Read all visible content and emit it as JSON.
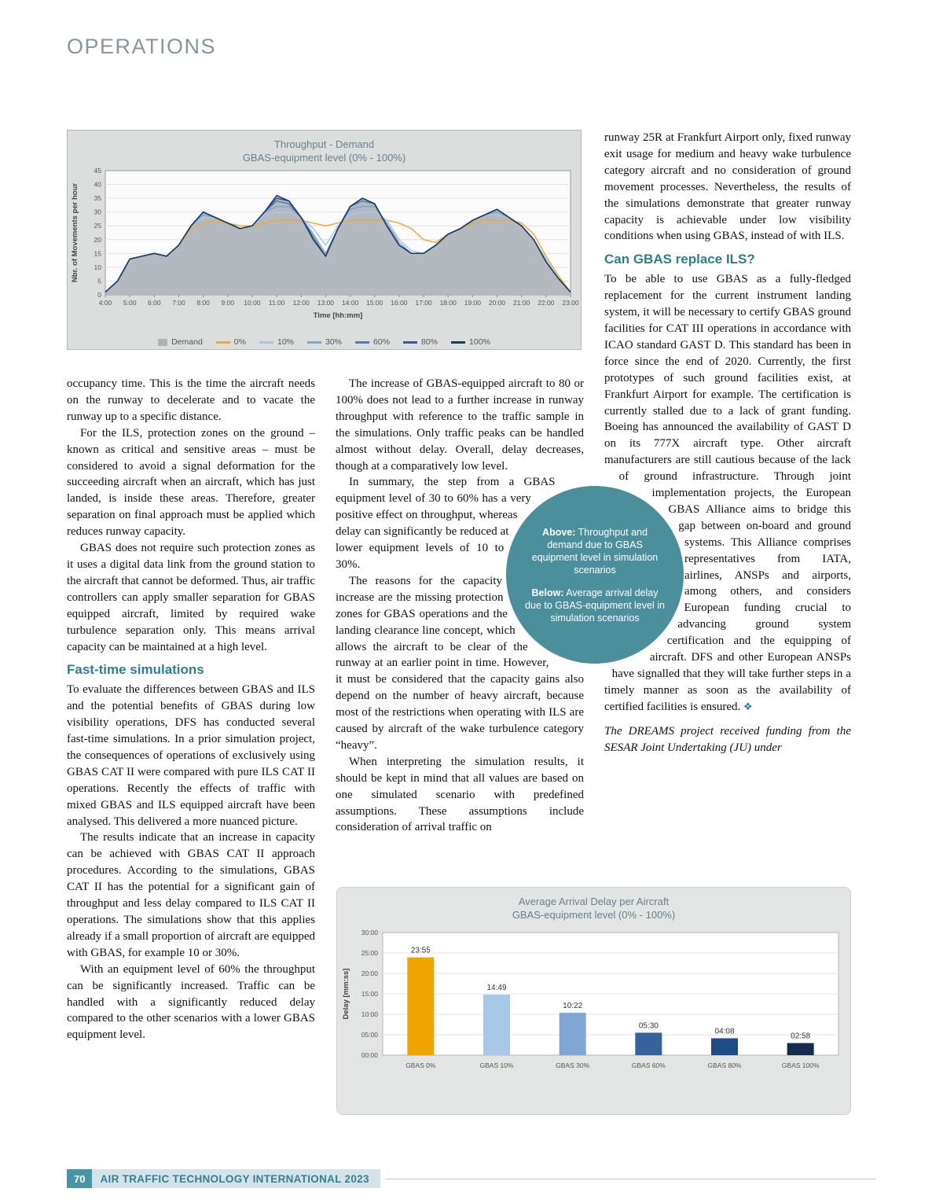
{
  "page": {
    "section_label": "OPERATIONS",
    "footer": {
      "page_number": "70",
      "publication": "AIR TRAFFIC TECHNOLOGY INTERNATIONAL 2023"
    }
  },
  "circle_badge": {
    "above_label": "Above:",
    "above_text": " Throughput and demand due to GBAS equipment level in simulation scenarios",
    "below_label": "Below:",
    "below_text": " Average arrival delay due to GBAS-equipment level in simulation scenarios"
  },
  "article": {
    "column1": [
      {
        "type": "p",
        "text": "occupancy time. This is the time the aircraft needs on the runway to decelerate and to vacate the runway up to a specific distance."
      },
      {
        "type": "p",
        "indent": true,
        "text": "For the ILS, protection zones on the ground – known as critical and sensitive areas – must be considered to avoid a signal deformation for the succeeding aircraft when an aircraft, which has just landed, is inside these areas. Therefore, greater separation on final approach must be applied which reduces runway capacity."
      },
      {
        "type": "p",
        "indent": true,
        "text": "GBAS does not require such protection zones as it uses a digital data link from the ground station to the aircraft that cannot be deformed. Thus, air traffic controllers can apply smaller separation for GBAS equipped aircraft, limited by required wake turbulence separation only. This means arrival capacity can be maintained at a high level."
      },
      {
        "type": "h2",
        "text": "Fast-time simulations"
      },
      {
        "type": "p",
        "text": "To evaluate the differences between GBAS and ILS and the potential benefits of GBAS during low visibility operations, DFS has conducted several fast-time simulations. In a prior simulation project, the consequences of operations of exclusively using GBAS CAT II were compared with pure ILS CAT II operations. Recently the effects of traffic with mixed GBAS and ILS equipped aircraft have been analysed. This delivered a more nuanced picture."
      },
      {
        "type": "p",
        "indent": true,
        "text": "The results indicate that an increase in capacity can be achieved with GBAS CAT II approach procedures. According to the simulations, GBAS CAT II has the potential for a significant gain of throughput and less delay compared to ILS CAT II operations. The simulations show that this applies already if a small proportion of aircraft are equipped with GBAS, for example 10 or 30%."
      },
      {
        "type": "p",
        "indent": true,
        "text": "With an equipment level of 60% the throughput can be significantly increased. Traffic can be handled with a significantly reduced delay compared to the other scenarios with a lower GBAS equipment level."
      }
    ],
    "column2": [
      {
        "type": "p",
        "indent": true,
        "text": "The increase of GBAS-equipped aircraft to 80 or 100% does not lead to a further increase in runway throughput with reference to the traffic sample in the simulations. Only traffic peaks can be handled almost without delay. Overall, delay decreases, though at a comparatively low level."
      },
      {
        "type": "p",
        "indent": true,
        "text": "In summary, the step from a GBAS equipment level of 30 to 60% has a very positive effect on throughput, whereas delay can significantly be reduced at lower equipment levels of 10 to 30%."
      },
      {
        "type": "p",
        "indent": true,
        "text": "The reasons for the capacity increase are the missing protection zones for GBAS operations and the landing clearance line concept, which allows the aircraft to be clear of the runway at an earlier point in time. However, it must be considered that the capacity gains also depend on the number of heavy aircraft, because most of the restrictions when operating with ILS are caused by aircraft of the wake turbulence category “heavy”."
      },
      {
        "type": "p",
        "indent": true,
        "text": "When interpreting the simulation results, it should be kept in mind that all values are based on one simulated scenario with predefined assumptions. These assumptions include consideration of arrival traffic on"
      }
    ],
    "column3": [
      {
        "type": "p",
        "text": "runway 25R at Frankfurt Airport only, fixed runway exit usage for medium and heavy wake turbulence category aircraft and no consideration of ground movement processes. Nevertheless, the results of the simulations demonstrate that greater runway capacity is achievable under low visibility conditions when using GBAS, instead of with ILS."
      },
      {
        "type": "h2",
        "text": "Can GBAS replace ILS?"
      },
      {
        "type": "p",
        "end_mark": "❖",
        "text": "To be able to use GBAS as a fully-fledged replacement for the current instrument landing system, it will be necessary to certify GBAS ground facilities for CAT III operations in accordance with ICAO standard GAST D. This standard has been in force since the end of 2020. Currently, the first prototypes of such ground facilities exist, at Frankfurt Airport for example. The certification is currently stalled due to a lack of grant funding. Boeing has announced the availability of GAST D on its 777X aircraft type. Other aircraft manufacturers are still cautious because of the lack of ground infrastructure. Through joint implementation projects, the European GBAS Alliance aims to bridge this gap between on-board and ground systems. This Alliance comprises representatives from IATA, airlines, ANSPs and airports, among others, and considers European funding crucial to advancing ground system certification and the equipping of aircraft. DFS and other European ANSPs have signalled that they will take further steps in a timely manner as soon as the availability of certified facilities is ensured."
      },
      {
        "type": "p",
        "italic": true,
        "text": "The DREAMS project received funding from the SESAR Joint Undertaking (JU) under"
      }
    ]
  },
  "chart_data": [
    {
      "type": "line",
      "title": "Throughput - Demand",
      "subtitle": "GBAS-equipment level (0% - 100%)",
      "xlabel": "Time  [hh:mm]",
      "ylabel": "Nbr. of Movements per hour",
      "xlim": [
        4,
        23
      ],
      "ylim": [
        0,
        45
      ],
      "ytick_step": 5,
      "xtick_values": [
        4,
        5,
        6,
        7,
        8,
        9,
        10,
        11,
        12,
        13,
        14,
        15,
        16,
        17,
        18,
        19,
        20,
        21,
        22,
        23
      ],
      "xticks": [
        "4:00",
        "5:00",
        "6:00",
        "7:00",
        "8:00",
        "9:00",
        "10:00",
        "11:00",
        "12:00",
        "13:00",
        "14:00",
        "15:00",
        "16:00",
        "17:00",
        "18:00",
        "19:00",
        "20:00",
        "21:00",
        "22:00",
        "23:00"
      ],
      "grid": true,
      "legend_position": "bottom",
      "x": [
        4,
        4.5,
        5,
        5.5,
        6,
        6.5,
        7,
        7.5,
        8,
        8.5,
        9,
        9.5,
        10,
        10.5,
        11,
        11.5,
        12,
        12.5,
        13,
        13.5,
        14,
        14.5,
        15,
        15.5,
        16,
        16.5,
        17,
        17.5,
        18,
        18.5,
        19,
        19.5,
        20,
        20.5,
        21,
        21.5,
        22,
        22.5,
        23
      ],
      "series": [
        {
          "name": "Demand",
          "style": "area",
          "color": "#aeb3bb",
          "values": [
            1,
            5,
            13,
            14,
            15,
            14,
            18,
            25,
            30,
            28,
            26,
            24,
            25,
            30,
            36,
            34,
            28,
            20,
            14,
            24,
            32,
            35,
            33,
            25,
            18,
            15,
            15,
            18,
            22,
            24,
            27,
            29,
            31,
            28,
            25,
            20,
            12,
            6,
            1
          ]
        },
        {
          "name": "0%",
          "style": "line",
          "color": "#f0a832",
          "values": [
            1,
            5,
            13,
            14,
            15,
            14,
            18,
            24,
            26,
            27,
            26,
            25,
            25,
            26,
            27,
            27,
            27,
            26,
            25,
            26,
            27,
            27,
            27,
            27,
            26,
            24,
            20,
            19,
            22,
            24,
            26,
            27,
            27,
            27,
            26,
            22,
            14,
            7,
            1
          ]
        },
        {
          "name": "10%",
          "style": "line",
          "color": "#a9c7e4",
          "values": [
            1,
            5,
            13,
            14,
            15,
            14,
            18,
            25,
            28,
            28,
            26,
            24,
            25,
            29,
            30,
            30,
            28,
            24,
            18,
            25,
            29,
            30,
            30,
            27,
            20,
            16,
            15,
            18,
            22,
            24,
            27,
            29,
            29,
            28,
            25,
            20,
            13,
            6,
            1
          ]
        },
        {
          "name": "30%",
          "style": "line",
          "color": "#7fa5cf",
          "values": [
            1,
            5,
            13,
            14,
            15,
            14,
            18,
            25,
            29,
            28,
            26,
            24,
            25,
            30,
            32,
            32,
            28,
            22,
            15,
            24,
            31,
            32,
            32,
            26,
            19,
            15,
            15,
            18,
            22,
            24,
            27,
            29,
            30,
            28,
            25,
            20,
            12,
            6,
            1
          ]
        },
        {
          "name": "60%",
          "style": "line",
          "color": "#4d7db8",
          "values": [
            1,
            5,
            13,
            14,
            15,
            14,
            18,
            25,
            30,
            28,
            26,
            24,
            25,
            30,
            34,
            33,
            28,
            21,
            14,
            24,
            32,
            34,
            33,
            25,
            18,
            15,
            15,
            18,
            22,
            24,
            27,
            29,
            31,
            28,
            25,
            20,
            12,
            6,
            1
          ]
        },
        {
          "name": "80%",
          "style": "line",
          "color": "#2d5e9b",
          "values": [
            1,
            5,
            13,
            14,
            15,
            14,
            18,
            25,
            30,
            28,
            26,
            24,
            25,
            30,
            35,
            34,
            28,
            20,
            14,
            24,
            32,
            35,
            33,
            25,
            18,
            15,
            15,
            18,
            22,
            24,
            27,
            29,
            31,
            28,
            25,
            20,
            12,
            6,
            1
          ]
        },
        {
          "name": "100%",
          "style": "line",
          "color": "#1c3a61",
          "values": [
            1,
            5,
            13,
            14,
            15,
            14,
            18,
            25,
            30,
            28,
            26,
            24,
            25,
            30,
            36,
            34,
            28,
            20,
            14,
            24,
            32,
            35,
            33,
            25,
            18,
            15,
            15,
            18,
            22,
            24,
            27,
            29,
            31,
            28,
            25,
            20,
            12,
            6,
            1
          ]
        }
      ]
    },
    {
      "type": "bar",
      "title": "Average Arrival Delay per Aircraft",
      "subtitle": "GBAS-equipment level (0% - 100%)",
      "ylabel": "Delay [mm:ss]",
      "categories": [
        "GBAS 0%",
        "GBAS 10%",
        "GBAS 30%",
        "GBAS 60%",
        "GBAS 80%",
        "GBAS 100%"
      ],
      "value_labels": [
        "23:55",
        "14:49",
        "10:22",
        "05:30",
        "04:08",
        "02:58"
      ],
      "values_seconds": [
        1435,
        889,
        622,
        330,
        248,
        178
      ],
      "bar_colors": [
        "#f0a500",
        "#a8c8e8",
        "#7fa6d5",
        "#35639c",
        "#1f4c86",
        "#182c52"
      ],
      "ylim_seconds": [
        0,
        1800
      ],
      "ytick_values": [
        0,
        300,
        600,
        900,
        1200,
        1500,
        1800
      ],
      "ytick_labels": [
        "00:00",
        "05:00",
        "10:00",
        "15:00",
        "20:00",
        "25:00",
        "30:00"
      ],
      "grid": true
    }
  ]
}
